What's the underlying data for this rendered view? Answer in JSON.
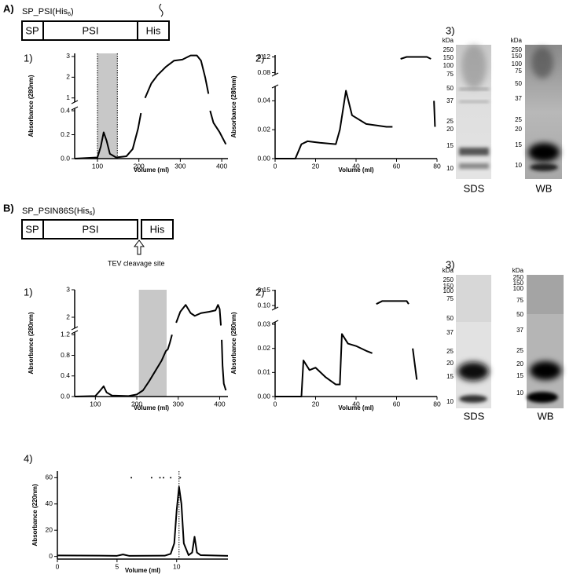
{
  "figure": {
    "A": {
      "label": "A)",
      "construct": {
        "name": "SP_PSI(His",
        "sub": "6",
        "end": ")"
      },
      "domains": [
        "SP",
        "PSI",
        "His"
      ]
    },
    "B": {
      "label": "B)",
      "construct": {
        "name": "SP_PSIN86S(His",
        "sub": "6",
        "end": ")"
      },
      "domains": [
        "SP",
        "PSI",
        "His"
      ],
      "cleavage": "TEV cleavage site"
    }
  },
  "gels": [
    {
      "panel": "3)",
      "lanes": [
        {
          "unit": "kDa",
          "markers": [
            "250",
            "150",
            "100",
            "75",
            "50",
            "37",
            "25",
            "20",
            "15",
            "10"
          ],
          "label": "SDS"
        },
        {
          "unit": "kDa",
          "markers": [
            "250",
            "150",
            "100",
            "75",
            "50",
            "37",
            "25",
            "20",
            "15",
            "10"
          ],
          "label": "WB"
        }
      ]
    },
    {
      "panel": "3)",
      "lanes": [
        {
          "unit": "kDa",
          "markers": [
            "250",
            "150",
            "100",
            "75",
            "50",
            "37",
            "25",
            "20",
            "15",
            "10"
          ],
          "label": "SDS"
        },
        {
          "unit": "kDa",
          "markers": [
            "250",
            "150",
            "100",
            "75",
            "50",
            "37",
            "25",
            "20",
            "15",
            "10"
          ],
          "label": "WB"
        }
      ]
    }
  ],
  "chart_data": [
    {
      "type": "line",
      "panel": "1)",
      "xlabel": "Volume (ml)",
      "ylabel": "Absorbance (280nm)",
      "xlim": [
        45,
        415
      ],
      "xticks": [
        100,
        200,
        300,
        400
      ],
      "y_segments": [
        {
          "ylim": [
            0,
            0.42
          ],
          "yticks": [
            {
              "value": 0,
              "label": "0.0"
            },
            0.2,
            0.4
          ]
        },
        {
          "ylim": [
            0.8,
            3.15
          ],
          "yticks": [
            1,
            2,
            3
          ]
        }
      ],
      "shade": [
        100,
        148
      ],
      "shade_dotted": true,
      "color": "#000000",
      "series": [
        {
          "x": [
            45,
            100,
            108,
            115,
            122,
            130,
            145,
            170,
            185,
            198,
            205,
            null,
            215,
            230,
            245,
            265,
            285,
            305,
            325,
            340,
            350,
            360,
            368,
            null,
            372,
            380,
            395,
            410
          ],
          "values": [
            0,
            0.01,
            0.1,
            0.22,
            0.15,
            0.04,
            0.01,
            0.02,
            0.08,
            0.25,
            0.38,
            null,
            1.0,
            1.7,
            2.1,
            2.5,
            2.8,
            2.85,
            3.05,
            3.05,
            2.8,
            2.0,
            1.2,
            null,
            0.4,
            0.3,
            0.22,
            0.12
          ]
        }
      ]
    },
    {
      "type": "line",
      "panel": "2)",
      "xlabel": "Volume (ml)",
      "ylabel": "Absorbance (280nm)",
      "xlim": [
        0,
        80
      ],
      "xticks": [
        0,
        20,
        40,
        60,
        80
      ],
      "y_segments": [
        {
          "ylim": [
            0,
            0.05
          ],
          "yticks": [
            {
              "value": 0,
              "label": "0.00"
            },
            0.02,
            0.04
          ]
        },
        {
          "ylim": [
            0.075,
            0.125
          ],
          "yticks": [
            0.08,
            0.12
          ]
        }
      ],
      "color": "#000000",
      "series": [
        {
          "x": [
            0,
            10,
            13,
            16,
            22,
            30,
            32,
            35,
            38,
            45,
            55,
            58,
            null,
            62,
            65,
            75,
            77,
            null,
            78.5,
            79
          ],
          "values": [
            0,
            0,
            0.01,
            0.012,
            0.011,
            0.01,
            0.02,
            0.047,
            0.03,
            0.024,
            0.022,
            0.022,
            null,
            0.115,
            0.12,
            0.12,
            0.115,
            null,
            0.04,
            0.022
          ]
        }
      ]
    },
    {
      "type": "line",
      "panel": "1)",
      "xlabel": "Volume (ml)",
      "ylabel": "Absorbance (280nm)",
      "xlim": [
        50,
        420
      ],
      "xticks": [
        100,
        200,
        300,
        400
      ],
      "y_segments": [
        {
          "ylim": [
            0,
            1.25
          ],
          "yticks": [
            {
              "value": 0,
              "label": "0.0"
            },
            0.4,
            0.8,
            1.2
          ]
        },
        {
          "ylim": [
            1.6,
            3.0
          ],
          "yticks": [
            2,
            3
          ]
        }
      ],
      "shade": [
        205,
        272
      ],
      "shade_dotted": false,
      "color": "#000000",
      "series": [
        {
          "x": [
            50,
            100,
            112,
            120,
            127,
            140,
            180,
            200,
            215,
            230,
            245,
            260,
            270,
            275,
            280,
            285,
            null,
            295,
            305,
            318,
            330,
            340,
            355,
            375,
            390,
            396,
            400,
            403,
            null,
            405,
            407,
            410,
            415
          ],
          "values": [
            0,
            0.01,
            0.12,
            0.2,
            0.08,
            0.02,
            0.01,
            0.04,
            0.12,
            0.3,
            0.5,
            0.7,
            0.88,
            0.92,
            1.05,
            1.2,
            null,
            1.8,
            2.2,
            2.45,
            2.15,
            2.05,
            2.15,
            2.2,
            2.25,
            2.45,
            2.3,
            1.7,
            null,
            1.1,
            0.6,
            0.25,
            0.12
          ]
        }
      ]
    },
    {
      "type": "line",
      "panel": "2)",
      "xlabel": "Volume (ml)",
      "ylabel": "Absorbance (280nm)",
      "xlim": [
        0,
        80
      ],
      "xticks": [
        0,
        20,
        40,
        60,
        80
      ],
      "y_segments": [
        {
          "ylim": [
            0,
            0.031
          ],
          "yticks": [
            {
              "value": 0,
              "label": "0.00"
            },
            0.01,
            0.02,
            0.03
          ]
        },
        {
          "ylim": [
            0.09,
            0.152
          ],
          "yticks": [
            {
              "value": 0.1,
              "label": "0.10"
            },
            0.15
          ]
        }
      ],
      "color": "#000000",
      "series": [
        {
          "x": [
            0,
            13,
            14,
            17,
            20,
            25,
            30,
            32,
            33,
            36,
            40,
            45,
            48,
            null,
            50,
            53,
            60,
            65,
            66,
            null,
            68,
            70
          ],
          "values": [
            0,
            0,
            0.015,
            0.011,
            0.012,
            0.008,
            0.005,
            0.005,
            0.026,
            0.022,
            0.021,
            0.019,
            0.018,
            null,
            0.105,
            0.115,
            0.115,
            0.115,
            0.105,
            null,
            0.02,
            0.007
          ]
        }
      ]
    },
    {
      "type": "line",
      "panel": "4)",
      "xlabel": "Volume (ml)",
      "ylabel": "Absorbance (220nm)",
      "xlim": [
        0,
        14.3
      ],
      "xticks": [
        0,
        5,
        10
      ],
      "y_segments": [
        {
          "ylim": [
            -2,
            65
          ],
          "yticks": [
            0,
            20,
            40,
            60
          ]
        }
      ],
      "vline": 10.2,
      "color": "#000000",
      "standards": {
        "x": [
          6.2,
          7.9,
          8.6,
          8.9,
          9.5,
          10.3
        ],
        "y": [
          60,
          60,
          60,
          60,
          60,
          60
        ]
      },
      "series": [
        {
          "x": [
            0,
            5,
            5.5,
            6,
            9,
            9.5,
            9.8,
            10,
            10.2,
            10.4,
            10.6,
            11,
            11.3,
            11.5,
            11.7,
            12,
            14.3
          ],
          "values": [
            0.8,
            0.5,
            1.5,
            0.5,
            0.6,
            2,
            10,
            35,
            53,
            40,
            10,
            1,
            3,
            15,
            3,
            1,
            0.5
          ]
        }
      ]
    }
  ]
}
